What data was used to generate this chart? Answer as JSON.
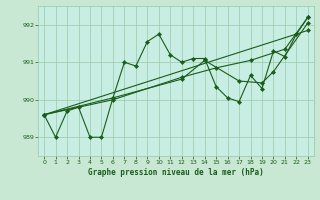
{
  "title": "Graphe pression niveau de la mer (hPa)",
  "fig_bg": "#c8e8d4",
  "plot_bg": "#c8eee4",
  "grid_color": "#98c8a8",
  "line_color": "#1a5c1a",
  "xlim": [
    -0.5,
    23.5
  ],
  "ylim": [
    988.5,
    992.5
  ],
  "yticks": [
    989,
    990,
    991,
    992
  ],
  "xticks": [
    0,
    1,
    2,
    3,
    4,
    5,
    6,
    7,
    8,
    9,
    10,
    11,
    12,
    13,
    14,
    15,
    16,
    17,
    18,
    19,
    20,
    21,
    22,
    23
  ],
  "series1_x": [
    0,
    1,
    2,
    3,
    4,
    5,
    6,
    7,
    8,
    9,
    10,
    11,
    12,
    13,
    14,
    15,
    16,
    17,
    18,
    19,
    20,
    21,
    22,
    23
  ],
  "series1_y": [
    989.6,
    989.0,
    989.7,
    989.8,
    989.0,
    989.0,
    990.05,
    991.0,
    990.9,
    991.55,
    991.75,
    991.2,
    991.0,
    991.1,
    991.1,
    990.35,
    990.05,
    989.95,
    990.65,
    990.3,
    991.3,
    991.15,
    991.75,
    992.2
  ],
  "series2_x": [
    0,
    23
  ],
  "series2_y": [
    989.6,
    991.85
  ],
  "series3_x": [
    0,
    6,
    12,
    14,
    17,
    19,
    20,
    23
  ],
  "series3_y": [
    989.6,
    990.05,
    990.55,
    991.05,
    990.5,
    990.45,
    990.75,
    992.05
  ],
  "series4_x": [
    0,
    6,
    12,
    15,
    18,
    21,
    23
  ],
  "series4_y": [
    989.6,
    990.0,
    990.6,
    990.85,
    991.05,
    991.35,
    992.2
  ]
}
